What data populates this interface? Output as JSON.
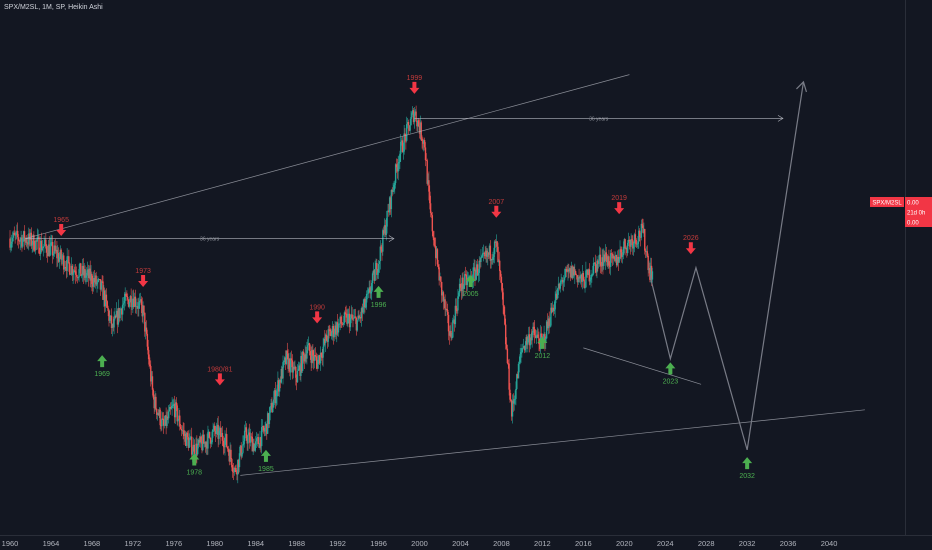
{
  "chart_data": {
    "type": "candlestick",
    "title": "SPX/M2SL, 1M, SP, Heikin Ashi",
    "x_ticks": [
      "1960",
      "1964",
      "1968",
      "1972",
      "1976",
      "1980",
      "1984",
      "1988",
      "1992",
      "1996",
      "2000",
      "2004",
      "2008",
      "2012",
      "2016",
      "2020",
      "2024",
      "2028",
      "2032",
      "2036",
      "2040"
    ],
    "x_range": [
      1960,
      2044
    ],
    "series_tag": {
      "name": "SPX/M2SL",
      "values": [
        "0.00",
        "21d 0h",
        "0.00"
      ]
    },
    "colors": {
      "bg": "#131722",
      "up": "#26a69a",
      "down": "#ef5350",
      "line": "#b2b5be",
      "projection": "#787b86"
    },
    "trend": [
      [
        1961.5,
        1.1
      ],
      [
        1964,
        1.07
      ],
      [
        1966,
        1.02
      ],
      [
        1968,
        0.99
      ],
      [
        1969,
        0.96
      ],
      [
        1970,
        0.85
      ],
      [
        1971,
        0.92
      ],
      [
        1972,
        0.94
      ],
      [
        1973,
        0.9
      ],
      [
        1974,
        0.66
      ],
      [
        1975,
        0.58
      ],
      [
        1976,
        0.64
      ],
      [
        1977,
        0.56
      ],
      [
        1978,
        0.52
      ],
      [
        1979,
        0.54
      ],
      [
        1980,
        0.57
      ],
      [
        1981,
        0.55
      ],
      [
        1982,
        0.46
      ],
      [
        1983,
        0.56
      ],
      [
        1984,
        0.53
      ],
      [
        1985,
        0.58
      ],
      [
        1986,
        0.68
      ],
      [
        1987,
        0.77
      ],
      [
        1988,
        0.72
      ],
      [
        1989,
        0.8
      ],
      [
        1990,
        0.76
      ],
      [
        1991,
        0.83
      ],
      [
        1992,
        0.86
      ],
      [
        1993,
        0.88
      ],
      [
        1994,
        0.87
      ],
      [
        1995,
        0.94
      ],
      [
        1996,
        1.04
      ],
      [
        1997,
        1.18
      ],
      [
        1998,
        1.33
      ],
      [
        1999.5,
        1.45
      ],
      [
        2000.5,
        1.36
      ],
      [
        2001,
        1.18
      ],
      [
        2002,
        0.98
      ],
      [
        2003,
        0.83
      ],
      [
        2004,
        0.97
      ],
      [
        2005,
        0.99
      ],
      [
        2006,
        1.03
      ],
      [
        2007.5,
        1.08
      ],
      [
        2008,
        0.96
      ],
      [
        2009,
        0.62
      ],
      [
        2010,
        0.8
      ],
      [
        2011,
        0.84
      ],
      [
        2012,
        0.81
      ],
      [
        2013,
        0.91
      ],
      [
        2014,
        0.99
      ],
      [
        2015,
        1.01
      ],
      [
        2016,
        0.98
      ],
      [
        2017,
        1.02
      ],
      [
        2018,
        1.05
      ],
      [
        2019,
        1.03
      ],
      [
        2020,
        1.08
      ],
      [
        2021,
        1.1
      ],
      [
        2021.8,
        1.12
      ],
      [
        2022.5,
        1.01
      ]
    ],
    "projection": [
      [
        2022.5,
        1.0
      ],
      [
        2024.5,
        0.77
      ],
      [
        2027,
        1.02
      ],
      [
        2032,
        0.52
      ],
      [
        2037.5,
        1.53
      ]
    ],
    "trendlines": [
      {
        "from": [
          1961.5,
          1.1
        ],
        "to": [
          2020.5,
          1.55
        ]
      },
      {
        "from": [
          1982.5,
          0.45
        ],
        "to": [
          2043.5,
          0.63
        ]
      },
      {
        "from": [
          2016,
          0.8
        ],
        "to": [
          2027.5,
          0.7
        ]
      }
    ],
    "time_spans": [
      {
        "from": [
          1961.5,
          1.1
        ],
        "to": [
          1997.5,
          1.1
        ],
        "label": "36 years"
      },
      {
        "from": [
          1999.5,
          1.43
        ],
        "to": [
          2035.5,
          1.43
        ],
        "label": "36 years"
      }
    ],
    "annotations": [
      {
        "label": "1965",
        "x": 1965,
        "y": 1.14,
        "kind": "down"
      },
      {
        "label": "1973",
        "x": 1973,
        "y": 1.0,
        "kind": "down"
      },
      {
        "label": "1980/81",
        "x": 1980.5,
        "y": 0.73,
        "kind": "down"
      },
      {
        "label": "1990",
        "x": 1990,
        "y": 0.9,
        "kind": "down"
      },
      {
        "label": "1999",
        "x": 1999.5,
        "y": 1.53,
        "kind": "down"
      },
      {
        "label": "2007",
        "x": 2007.5,
        "y": 1.19,
        "kind": "down"
      },
      {
        "label": "2019",
        "x": 2019.5,
        "y": 1.2,
        "kind": "down"
      },
      {
        "label": "2026",
        "x": 2026.5,
        "y": 1.09,
        "kind": "down"
      },
      {
        "label": "1969",
        "x": 1969,
        "y": 0.78,
        "kind": "up"
      },
      {
        "label": "1978",
        "x": 1978,
        "y": 0.51,
        "kind": "up"
      },
      {
        "label": "1985",
        "x": 1985,
        "y": 0.52,
        "kind": "up"
      },
      {
        "label": "1996",
        "x": 1996,
        "y": 0.97,
        "kind": "up"
      },
      {
        "label": "2005",
        "x": 2005,
        "y": 1.0,
        "kind": "up"
      },
      {
        "label": "2012",
        "x": 2012,
        "y": 0.83,
        "kind": "up"
      },
      {
        "label": "2023",
        "x": 2024.5,
        "y": 0.76,
        "kind": "up"
      },
      {
        "label": "2032",
        "x": 2032,
        "y": 0.5,
        "kind": "up"
      }
    ]
  }
}
